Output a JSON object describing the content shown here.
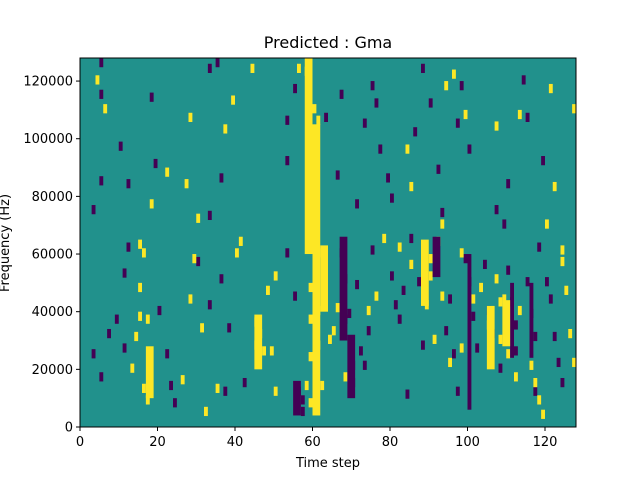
{
  "chart_data": {
    "type": "heatmap",
    "title": "Predicted : Gma",
    "xlabel": "Time step",
    "ylabel": "Frequency (Hz)",
    "xlim": [
      0,
      128
    ],
    "ylim": [
      0,
      128000
    ],
    "xticks": [
      0,
      20,
      40,
      60,
      80,
      100,
      120
    ],
    "yticks": [
      0,
      20000,
      40000,
      60000,
      80000,
      100000,
      120000
    ],
    "xtick_labels": [
      "0",
      "20",
      "40",
      "60",
      "80",
      "100",
      "120"
    ],
    "ytick_labels": [
      "0",
      "20000",
      "40000",
      "60000",
      "80000",
      "100000",
      "120000"
    ],
    "grid": false,
    "legend": "none",
    "colormap": "viridis",
    "colors": {
      "low": "#440154",
      "mid": "#21918c",
      "high": "#fde725"
    },
    "rows": 128,
    "cols": 128,
    "background_value": "mid",
    "cells_high": [
      [
        4,
        120000
      ],
      [
        6,
        110000
      ],
      [
        22,
        88000
      ],
      [
        18,
        77000
      ],
      [
        15,
        63000
      ],
      [
        16,
        60000
      ],
      [
        15,
        48000
      ],
      [
        15,
        38000
      ],
      [
        17,
        37000
      ],
      [
        14,
        31000
      ],
      [
        13,
        20000
      ],
      [
        16,
        13000
      ],
      [
        17,
        9000
      ],
      [
        28,
        107000
      ],
      [
        27,
        84000
      ],
      [
        30,
        72000
      ],
      [
        29,
        58000
      ],
      [
        28,
        44000
      ],
      [
        31,
        34000
      ],
      [
        35,
        13000
      ],
      [
        32,
        5000
      ],
      [
        26,
        16000
      ],
      [
        44,
        124000
      ],
      [
        39,
        113000
      ],
      [
        37,
        103000
      ],
      [
        41,
        64000
      ],
      [
        40,
        60000
      ],
      [
        45,
        36000
      ],
      [
        46,
        32000
      ],
      [
        45,
        28000
      ],
      [
        47,
        26000
      ],
      [
        50,
        12000
      ],
      [
        48,
        47000
      ],
      [
        50,
        52000
      ],
      [
        49,
        26000
      ],
      [
        56,
        124000
      ],
      [
        58,
        123000
      ],
      [
        60,
        110000
      ],
      [
        61,
        106000
      ],
      [
        60,
        96000
      ],
      [
        60,
        89000
      ],
      [
        60,
        82000
      ],
      [
        59,
        75000
      ],
      [
        60,
        68000
      ],
      [
        61,
        60000
      ],
      [
        60,
        55000
      ],
      [
        59,
        48000
      ],
      [
        60,
        44000
      ],
      [
        61,
        40000
      ],
      [
        59,
        37000
      ],
      [
        60,
        33000
      ],
      [
        61,
        28000
      ],
      [
        59,
        24000
      ],
      [
        60,
        20000
      ],
      [
        60,
        12000
      ],
      [
        59,
        8000
      ],
      [
        58,
        14000
      ],
      [
        62,
        14000
      ],
      [
        64,
        30000
      ],
      [
        65,
        33000
      ],
      [
        63,
        53000
      ],
      [
        66,
        41000
      ],
      [
        68,
        17000
      ],
      [
        74,
        40000
      ],
      [
        76,
        45000
      ],
      [
        78,
        65000
      ],
      [
        82,
        62000
      ],
      [
        85,
        56000
      ],
      [
        88,
        60000
      ],
      [
        90,
        58000
      ],
      [
        89,
        42000
      ],
      [
        91,
        30000
      ],
      [
        93,
        45000
      ],
      [
        95,
        22000
      ],
      [
        98,
        27000
      ],
      [
        103,
        48000
      ],
      [
        105,
        35000
      ],
      [
        108,
        43000
      ],
      [
        108,
        30000
      ],
      [
        110,
        25000
      ],
      [
        112,
        17000
      ],
      [
        84,
        96000
      ],
      [
        85,
        83000
      ],
      [
        90,
        52000
      ],
      [
        92,
        64000
      ],
      [
        93,
        70000
      ],
      [
        98,
        60000
      ],
      [
        101,
        44000
      ],
      [
        107,
        51000
      ],
      [
        109,
        44000
      ],
      [
        113,
        40000
      ],
      [
        116,
        21000
      ],
      [
        117,
        15000
      ],
      [
        118,
        9000
      ],
      [
        119,
        4000
      ],
      [
        124,
        61000
      ],
      [
        125,
        47000
      ],
      [
        126,
        32000
      ],
      [
        127,
        22000
      ],
      [
        127,
        110000
      ],
      [
        122,
        83000
      ],
      [
        120,
        70000
      ],
      [
        124,
        57000
      ],
      [
        121,
        117000
      ],
      [
        113,
        108000
      ],
      [
        107,
        104000
      ],
      [
        99,
        108000
      ],
      [
        96,
        122000
      ],
      [
        94,
        118000
      ]
    ],
    "cells_low": [
      [
        5,
        126000
      ],
      [
        5,
        115000
      ],
      [
        10,
        97000
      ],
      [
        12,
        84000
      ],
      [
        5,
        85000
      ],
      [
        3,
        75000
      ],
      [
        12,
        62000
      ],
      [
        11,
        53000
      ],
      [
        9,
        37000
      ],
      [
        7,
        32000
      ],
      [
        3,
        25000
      ],
      [
        5,
        17000
      ],
      [
        11,
        27000
      ],
      [
        18,
        114000
      ],
      [
        19,
        91000
      ],
      [
        20,
        40000
      ],
      [
        22,
        25000
      ],
      [
        23,
        14000
      ],
      [
        24,
        8000
      ],
      [
        33,
        124000
      ],
      [
        35,
        126000
      ],
      [
        36,
        86000
      ],
      [
        33,
        73000
      ],
      [
        30,
        57000
      ],
      [
        33,
        42000
      ],
      [
        36,
        51000
      ],
      [
        38,
        34000
      ],
      [
        37,
        12000
      ],
      [
        42,
        15000
      ],
      [
        53,
        106000
      ],
      [
        55,
        117000
      ],
      [
        53,
        92000
      ],
      [
        53,
        60000
      ],
      [
        55,
        45000
      ],
      [
        57,
        9000
      ],
      [
        56,
        12000
      ],
      [
        57,
        5000
      ],
      [
        63,
        107000
      ],
      [
        67,
        115000
      ],
      [
        66,
        87000
      ],
      [
        67,
        60000
      ],
      [
        68,
        51000
      ],
      [
        69,
        39000
      ],
      [
        68,
        37000
      ],
      [
        70,
        21000
      ],
      [
        70,
        15000
      ],
      [
        71,
        49000
      ],
      [
        72,
        26000
      ],
      [
        75,
        61000
      ],
      [
        74,
        33000
      ],
      [
        73,
        21000
      ],
      [
        71,
        77000
      ],
      [
        73,
        105000
      ],
      [
        75,
        118000
      ],
      [
        76,
        112000
      ],
      [
        77,
        96000
      ],
      [
        79,
        86000
      ],
      [
        80,
        79000
      ],
      [
        80,
        52000
      ],
      [
        81,
        42000
      ],
      [
        83,
        47000
      ],
      [
        82,
        37000
      ],
      [
        84,
        11000
      ],
      [
        85,
        65000
      ],
      [
        87,
        50000
      ],
      [
        88,
        28000
      ],
      [
        92,
        89000
      ],
      [
        93,
        74000
      ],
      [
        95,
        44000
      ],
      [
        94,
        33000
      ],
      [
        96,
        25000
      ],
      [
        97,
        12000
      ],
      [
        99,
        58000
      ],
      [
        100,
        50000
      ],
      [
        101,
        38000
      ],
      [
        102,
        27000
      ],
      [
        104,
        56000
      ],
      [
        105,
        40000
      ],
      [
        106,
        32000
      ],
      [
        108,
        20000
      ],
      [
        109,
        70000
      ],
      [
        110,
        54000
      ],
      [
        111,
        43000
      ],
      [
        112,
        35000
      ],
      [
        112,
        26000
      ],
      [
        115,
        50000
      ],
      [
        116,
        39000
      ],
      [
        117,
        31000
      ],
      [
        117,
        12000
      ],
      [
        118,
        62000
      ],
      [
        120,
        50000
      ],
      [
        121,
        44000
      ],
      [
        122,
        31000
      ],
      [
        123,
        22000
      ],
      [
        124,
        15000
      ],
      [
        119,
        92000
      ],
      [
        115,
        107000
      ],
      [
        114,
        120000
      ],
      [
        110,
        84000
      ],
      [
        107,
        75000
      ],
      [
        100,
        96000
      ],
      [
        97,
        105000
      ],
      [
        98,
        118000
      ],
      [
        90,
        112000
      ],
      [
        88,
        124000
      ],
      [
        86,
        102000
      ]
    ],
    "vertical_bands_high": [
      [
        58,
        60000,
        128000,
        2
      ],
      [
        60,
        4000,
        105000,
        2
      ],
      [
        62,
        40000,
        63000,
        2
      ],
      [
        88,
        42000,
        65000,
        2
      ],
      [
        105,
        20000,
        42000,
        2
      ],
      [
        109,
        28000,
        44000,
        2
      ],
      [
        45,
        20000,
        39000,
        2
      ],
      [
        17,
        10000,
        28000,
        2
      ]
    ],
    "vertical_bands_low": [
      [
        55,
        4000,
        16000,
        2
      ],
      [
        67,
        30000,
        66000,
        2
      ],
      [
        69,
        10000,
        32000,
        2
      ],
      [
        91,
        52000,
        66000,
        2
      ],
      [
        100,
        6000,
        60000,
        1
      ],
      [
        111,
        24000,
        50000,
        1
      ],
      [
        116,
        24000,
        50000,
        1
      ]
    ]
  }
}
